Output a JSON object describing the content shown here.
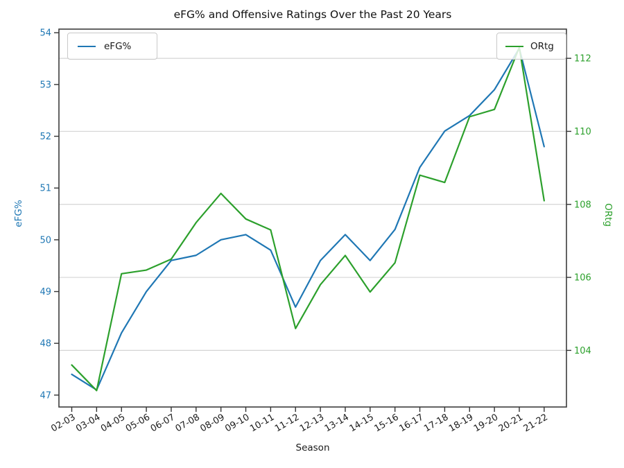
{
  "figure": {
    "title": "eFG% and Offensive Ratings Over the Past 20 Years",
    "xlabel": "Season",
    "ylabel_left": "eFG%",
    "ylabel_right": "ORtg",
    "legend_left": {
      "label": "eFG%"
    },
    "legend_right": {
      "label": "ORtg"
    }
  },
  "chart_data": {
    "type": "line",
    "title": "eFG% and Offensive Ratings Over the Past 20 Years",
    "xlabel": "Season",
    "categories": [
      "02-03",
      "03-04",
      "04-05",
      "05-06",
      "06-07",
      "07-08",
      "08-09",
      "09-10",
      "10-11",
      "11-12",
      "12-13",
      "13-14",
      "14-15",
      "15-16",
      "16-17",
      "17-18",
      "18-19",
      "19-20",
      "20-21",
      "21-22"
    ],
    "series": [
      {
        "name": "eFG%",
        "axis": "left",
        "color": "#1f77b4",
        "values": [
          47.4,
          47.1,
          48.2,
          49.0,
          49.6,
          49.7,
          50.0,
          50.1,
          49.8,
          48.7,
          49.6,
          50.1,
          49.6,
          50.2,
          51.4,
          52.1,
          52.4,
          52.9,
          53.7,
          51.8
        ]
      },
      {
        "name": "ORtg",
        "axis": "right",
        "color": "#2ca02c",
        "values": [
          103.6,
          102.9,
          106.1,
          106.2,
          106.5,
          107.5,
          108.3,
          107.6,
          107.3,
          104.6,
          105.8,
          106.6,
          105.6,
          106.4,
          108.8,
          108.6,
          110.4,
          110.6,
          112.3,
          108.1
        ]
      }
    ],
    "axes": {
      "left": {
        "label": "eFG%",
        "color": "#1f77b4",
        "ticks": [
          47,
          48,
          49,
          50,
          51,
          52,
          53,
          54
        ],
        "range": [
          46.77,
          54.07
        ]
      },
      "right": {
        "label": "ORtg",
        "color": "#2ca02c",
        "ticks": [
          104,
          106,
          108,
          110,
          112
        ],
        "range": [
          102.45,
          112.8
        ]
      }
    },
    "grid": {
      "horizontal_at": "right-axis-ticks",
      "color": "#d4d4d4"
    },
    "legend": [
      {
        "label": "eFG%",
        "position": "upper left"
      },
      {
        "label": "ORtg",
        "position": "upper right"
      }
    ]
  }
}
